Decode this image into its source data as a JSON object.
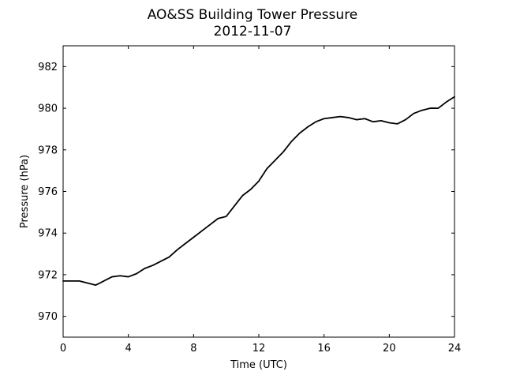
{
  "chart_data": {
    "type": "line",
    "title": "AO&SS Building Tower Pressure",
    "subtitle": "2012-11-07",
    "xlabel": "Time (UTC)",
    "ylabel": "Pressure (hPa)",
    "xlim": [
      0,
      24
    ],
    "ylim": [
      969,
      983
    ],
    "xticks": [
      0,
      4,
      8,
      12,
      16,
      20,
      24
    ],
    "yticks": [
      970,
      972,
      974,
      976,
      978,
      980,
      982
    ],
    "grid": false,
    "series": [
      {
        "color": "#000000",
        "x": [
          0,
          0.5,
          1,
          1.5,
          2,
          2.5,
          3,
          3.5,
          4,
          4.5,
          5,
          5.5,
          6,
          6.5,
          7,
          7.5,
          8,
          8.5,
          9,
          9.5,
          10,
          10.5,
          11,
          11.5,
          12,
          12.5,
          13,
          13.5,
          14,
          14.5,
          15,
          15.5,
          16,
          16.5,
          17,
          17.5,
          18,
          18.5,
          19,
          19.5,
          20,
          20.5,
          21,
          21.5,
          22,
          22.5,
          23,
          23.5,
          24
        ],
        "values": [
          971.7,
          971.7,
          971.7,
          971.6,
          971.5,
          971.7,
          971.9,
          971.95,
          971.9,
          972.05,
          972.3,
          972.45,
          972.65,
          972.85,
          973.2,
          973.5,
          973.8,
          974.1,
          974.4,
          974.7,
          974.8,
          975.3,
          975.8,
          976.1,
          976.5,
          977.1,
          977.5,
          977.9,
          978.4,
          978.8,
          979.1,
          979.35,
          979.5,
          979.55,
          979.6,
          979.55,
          979.45,
          979.5,
          979.35,
          979.4,
          979.3,
          979.25,
          979.45,
          979.75,
          979.9,
          980.0,
          980.0,
          980.3,
          980.55
        ]
      }
    ]
  }
}
